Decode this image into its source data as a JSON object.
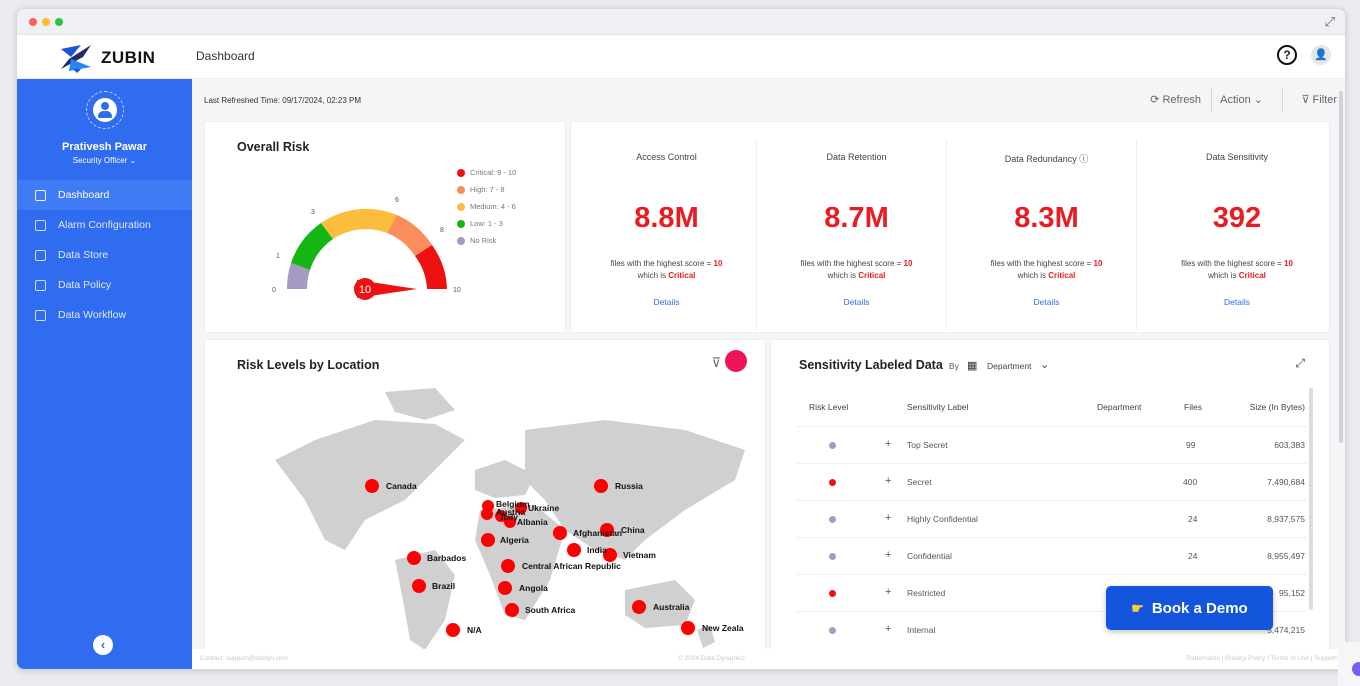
{
  "app": {
    "brand": "ZUBIN",
    "page_title": "Dashboard"
  },
  "header": {
    "help_label": "?",
    "user_label": "👤"
  },
  "sidebar": {
    "user_name": "Prativesh Pawar",
    "user_role": "Security Officer ⌄",
    "items": [
      {
        "label": "Dashboard",
        "active": true
      },
      {
        "label": "Alarm Configuration"
      },
      {
        "label": "Data Store"
      },
      {
        "label": "Data Policy"
      },
      {
        "label": "Data Workflow"
      }
    ],
    "collapse_label": "‹"
  },
  "toolbar": {
    "last_refreshed": "Last Refreshed Time: 09/17/2024, 02:23 PM",
    "refresh_label": "⟳ Refresh",
    "action_label": "Action ⌄",
    "filter_label": "⊽ Filter"
  },
  "overall_risk": {
    "title": "Overall Risk",
    "score": "10",
    "ticks": [
      "0",
      "1",
      "3",
      "6",
      "8",
      "10"
    ],
    "legend": [
      {
        "label": "Critical: 9 - 10",
        "color": "#ee1111"
      },
      {
        "label": "High: 7 - 8",
        "color": "#fb8c5c"
      },
      {
        "label": "Medium: 4 - 6",
        "color": "#fbbd3c"
      },
      {
        "label": "Low: 1 - 3",
        "color": "#15b614"
      },
      {
        "label": "No Risk",
        "color": "#a69ac4"
      }
    ]
  },
  "metrics": [
    {
      "label": "Access Control",
      "value": "8.8M",
      "desc_pre": "files with the highest score = ",
      "desc_score": "10",
      "desc_mid": "which is ",
      "desc_level": "Critical",
      "link": "Details"
    },
    {
      "label": "Data Retention",
      "value": "8.7M",
      "desc_pre": "files with the highest score = ",
      "desc_score": "10",
      "desc_mid": "which is ",
      "desc_level": "Critical",
      "link": "Details"
    },
    {
      "label": "Data Redundancy ⓘ",
      "value": "8.3M",
      "desc_pre": "files with the highest score = ",
      "desc_score": "10",
      "desc_mid": "which is ",
      "desc_level": "Critical",
      "link": "Details"
    },
    {
      "label": "Data Sensitivity",
      "value": "392",
      "desc_pre": "files with the highest score = ",
      "desc_score": "10",
      "desc_mid": "which is ",
      "desc_level": "Critical",
      "link": "Details"
    }
  ],
  "risk_map": {
    "title": "Risk Levels by Location",
    "filter_icon": "filter-icon",
    "locations": [
      "Canada",
      "Russia",
      "Belgium",
      "Ukraine",
      "Austria",
      "Italy",
      "Albania",
      "Afghanistan",
      "China",
      "Algeria",
      "India",
      "Vietnam",
      "Barbados",
      "Central African Republic",
      "Brazil",
      "Angola",
      "South Africa",
      "Australia",
      "N/A",
      "New Zeala"
    ]
  },
  "sensitivity": {
    "title": "Sensitivity Labeled Data",
    "by_label": "By",
    "group_by": "Department",
    "columns": [
      "Risk Level",
      "Sensitivity Label",
      "Department",
      "Files",
      "Size (In Bytes)"
    ],
    "rows": [
      {
        "risk_color": "#a69ac4",
        "label": "Top Secret",
        "files": "99",
        "size": "603,383"
      },
      {
        "risk_color": "#ee1111",
        "label": "Secret",
        "files": "400",
        "size": "7,490,684"
      },
      {
        "risk_color": "#a69ac4",
        "label": "Highly Confidential",
        "files": "24",
        "size": "8,937,575"
      },
      {
        "risk_color": "#a69ac4",
        "label": "Confidential",
        "files": "24",
        "size": "8,955,497"
      },
      {
        "risk_color": "#ee1111",
        "label": "Restricted",
        "files": "",
        "size": "95,152"
      },
      {
        "risk_color": "#a69ac4",
        "label": "Internal",
        "files": "",
        "size": "5,474,215"
      }
    ]
  },
  "book_demo": {
    "label": "Book a Demo",
    "icon": "pointing-hand-icon"
  },
  "footer": {
    "contact": "Contact: support@datdyn.com",
    "copyright": "© 2024 Data Dynamics",
    "links": "Trademarks  |  Privacy Policy  |  Terms of Use  |  Support"
  }
}
